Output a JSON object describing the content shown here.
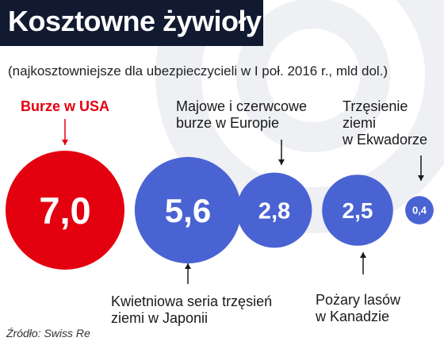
{
  "title": "Kosztowne żywioły",
  "subtitle": "(najkosztowniejsze dla ubezpieczycieli w I poł. 2016 r., mld dol.)",
  "source": "Źródło: Swiss Re",
  "colors": {
    "title_bg": "#121a31",
    "highlight": "#e3000f",
    "bubble": "#4a63d3",
    "watermark": "#eef0f4"
  },
  "chart_data": {
    "type": "bubble",
    "title": "Kosztowne żywioły",
    "subtitle": "(najkosztowniejsze dla ubezpieczycieli w I poł. 2016 r., mld dol.)",
    "unit": "mld dol.",
    "categories": [
      "Burze w USA",
      "Kwietniowa seria trzęsień ziemi w Japonii",
      "Majowe i czerwcowe burze w Europie",
      "Pożary lasów w Kanadzie",
      "Trzęsienie ziemi w Ekwadorze"
    ],
    "values": [
      7.0,
      5.6,
      2.8,
      2.5,
      0.4
    ],
    "value_labels": [
      "7,0",
      "5,6",
      "2,8",
      "2,5",
      "0,4"
    ],
    "highlighted": "Burze w USA",
    "label_lines": [
      [
        "Burze w USA"
      ],
      [
        "Kwietniowa seria trzęsień",
        "ziemi w Japonii"
      ],
      [
        "Majowe i czerwcowe",
        "burze w Europie"
      ],
      [
        "Pożary lasów",
        "w Kanadzie"
      ],
      [
        "Trzęsienie",
        "ziemi",
        "w Ekwadorze"
      ]
    ],
    "label_positions": [
      "above",
      "below",
      "above",
      "below",
      "above"
    ]
  }
}
